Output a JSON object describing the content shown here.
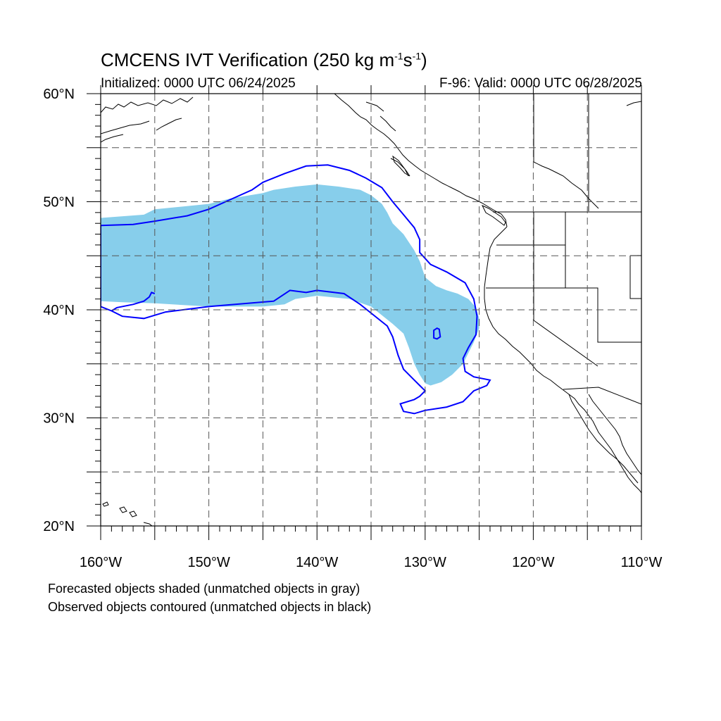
{
  "title": {
    "prefix": "CMCENS IVT Verification (250 kg m",
    "exp1": "-1",
    "mid": "s",
    "exp2": "-1",
    "suffix": ")"
  },
  "initialized": "Initialized: 0000 UTC 06/24/2025",
  "valid": "F-96: Valid: 0000 UTC 06/28/2025",
  "captions": [
    "Forecasted objects shaded (unmatched objects in gray)",
    "Observed objects contoured (unmatched objects in black)"
  ],
  "axes": {
    "lat_labels": [
      {
        "lat": 60,
        "text": "60°N"
      },
      {
        "lat": 50,
        "text": "50°N"
      },
      {
        "lat": 40,
        "text": "40°N"
      },
      {
        "lat": 30,
        "text": "30°N"
      },
      {
        "lat": 20,
        "text": "20°N"
      }
    ],
    "lon_labels": [
      {
        "lon": -160,
        "text": "160°W"
      },
      {
        "lon": -150,
        "text": "150°W"
      },
      {
        "lon": -140,
        "text": "140°W"
      },
      {
        "lon": -130,
        "text": "130°W"
      },
      {
        "lon": -120,
        "text": "120°W"
      },
      {
        "lon": -110,
        "text": "110°W"
      }
    ],
    "lat_range": [
      20,
      60
    ],
    "lon_range": [
      -160,
      -110
    ],
    "grid_interval_deg": 5,
    "grid": true
  },
  "colors": {
    "forecast_fill": "#87ceeb",
    "observed_contour": "#0000ff",
    "coastline": "#000000",
    "grid": "#555555"
  },
  "forecast_object": {
    "description": "matched forecast IVT object",
    "outline_lonlat": [
      [
        -160,
        48.5
      ],
      [
        -156,
        48.8
      ],
      [
        -155,
        49.3
      ],
      [
        -150,
        49.8
      ],
      [
        -148,
        50.3
      ],
      [
        -145,
        50.8
      ],
      [
        -144,
        51.1
      ],
      [
        -142,
        51.4
      ],
      [
        -140,
        51.6
      ],
      [
        -138,
        51.4
      ],
      [
        -136,
        51.1
      ],
      [
        -135,
        50.6
      ],
      [
        -134,
        49.8
      ],
      [
        -133.5,
        49
      ],
      [
        -133,
        48
      ],
      [
        -132,
        47
      ],
      [
        -131,
        45.5
      ],
      [
        -130.5,
        44.5
      ],
      [
        -130,
        43
      ],
      [
        -129,
        42.2
      ],
      [
        -128,
        41.8
      ],
      [
        -127,
        41.5
      ],
      [
        -126,
        41
      ],
      [
        -125.3,
        40.2
      ],
      [
        -125,
        39.2
      ],
      [
        -125,
        38.3
      ],
      [
        -125.5,
        37
      ],
      [
        -126,
        36
      ],
      [
        -126.5,
        35
      ],
      [
        -127.5,
        34
      ],
      [
        -128.5,
        33.3
      ],
      [
        -129.5,
        33
      ],
      [
        -130,
        33.2
      ],
      [
        -130.5,
        34
      ],
      [
        -131,
        35
      ],
      [
        -131.5,
        36.5
      ],
      [
        -132,
        37.8
      ],
      [
        -133,
        38.7
      ],
      [
        -134,
        39.5
      ],
      [
        -135,
        40.3
      ],
      [
        -137,
        41
      ],
      [
        -140,
        41.3
      ],
      [
        -142,
        41
      ],
      [
        -143,
        40.5
      ],
      [
        -145,
        40.3
      ],
      [
        -150,
        40.3
      ],
      [
        -155,
        40.6
      ],
      [
        -158,
        40.7
      ],
      [
        -160,
        40.8
      ]
    ]
  },
  "observed_objects": [
    {
      "name": "main",
      "outline_lonlat": [
        [
          -160,
          47.8
        ],
        [
          -157,
          47.9
        ],
        [
          -155,
          48.2
        ],
        [
          -152,
          48.7
        ],
        [
          -150,
          49.3
        ],
        [
          -148,
          50.2
        ],
        [
          -146,
          51.1
        ],
        [
          -145,
          51.8
        ],
        [
          -143,
          52.6
        ],
        [
          -141,
          53.3
        ],
        [
          -139,
          53.4
        ],
        [
          -137,
          52.9
        ],
        [
          -135.5,
          52.2
        ],
        [
          -134,
          51.3
        ],
        [
          -133,
          50
        ],
        [
          -132,
          48.8
        ],
        [
          -131,
          47.6
        ],
        [
          -130.5,
          46.5
        ],
        [
          -130.5,
          45.3
        ],
        [
          -129.5,
          44.2
        ],
        [
          -128,
          43.5
        ],
        [
          -126.3,
          42.5
        ],
        [
          -125.5,
          41
        ],
        [
          -125.2,
          39.4
        ],
        [
          -125.3,
          37.7
        ],
        [
          -126,
          36.5
        ],
        [
          -126.5,
          35.5
        ],
        [
          -126.3,
          34.3
        ],
        [
          -125.5,
          33.8
        ],
        [
          -124,
          33.5
        ],
        [
          -124.3,
          33
        ],
        [
          -125.5,
          32.5
        ],
        [
          -126.5,
          31.5
        ],
        [
          -128,
          31
        ],
        [
          -130,
          30.7
        ],
        [
          -131,
          30.4
        ],
        [
          -132,
          30.6
        ],
        [
          -132.3,
          31.3
        ],
        [
          -131,
          31.7
        ],
        [
          -130.5,
          32
        ],
        [
          -130,
          32.5
        ],
        [
          -130.5,
          33
        ],
        [
          -131,
          33.5
        ],
        [
          -132,
          34.5
        ],
        [
          -132.5,
          35.8
        ],
        [
          -133,
          37.5
        ],
        [
          -133.5,
          38.5
        ],
        [
          -135,
          39.7
        ],
        [
          -136,
          40.5
        ],
        [
          -137.5,
          41.5
        ],
        [
          -140,
          41.8
        ],
        [
          -141,
          41.6
        ],
        [
          -142.5,
          41.8
        ],
        [
          -144,
          40.8
        ],
        [
          -150,
          40.3
        ],
        [
          -154,
          39.8
        ],
        [
          -156,
          39.2
        ],
        [
          -158,
          39.4
        ],
        [
          -159,
          39.9
        ],
        [
          -160,
          40.3
        ]
      ]
    },
    {
      "name": "small-loop",
      "outline_lonlat": [
        [
          -128.7,
          38.2
        ],
        [
          -128.9,
          38.3
        ],
        [
          -129.2,
          38.1
        ],
        [
          -129.2,
          37.4
        ],
        [
          -128.9,
          37.3
        ],
        [
          -128.6,
          37.5
        ],
        [
          -128.7,
          38.2
        ]
      ]
    },
    {
      "name": "west-hook",
      "outline_lonlat": [
        [
          -155,
          41.5
        ],
        [
          -155.3,
          41.6
        ],
        [
          -155.5,
          41.2
        ],
        [
          -156,
          40.8
        ],
        [
          -157,
          40.5
        ],
        [
          -158.5,
          40.2
        ],
        [
          -159,
          39.9
        ]
      ]
    }
  ]
}
